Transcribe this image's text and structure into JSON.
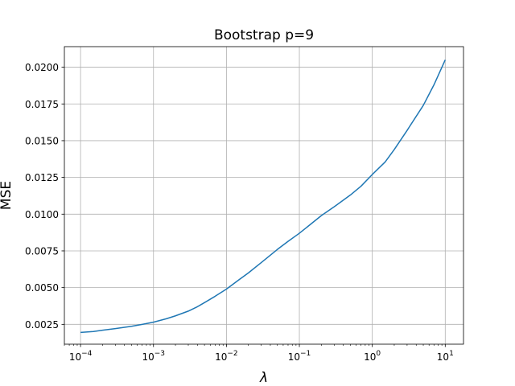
{
  "chart_data": {
    "type": "line",
    "title": "Bootstrap p=9",
    "xlabel": "λ",
    "ylabel": "MSE",
    "xscale": "log",
    "xlim": [
      6e-05,
      17.8
    ],
    "ylim": [
      0.00115,
      0.0214
    ],
    "grid": true,
    "x_ticks": [
      {
        "value": 0.0001,
        "base": "10",
        "exp": "−4"
      },
      {
        "value": 0.001,
        "base": "10",
        "exp": "−3"
      },
      {
        "value": 0.01,
        "base": "10",
        "exp": "−2"
      },
      {
        "value": 0.1,
        "base": "10",
        "exp": "−1"
      },
      {
        "value": 1,
        "base": "10",
        "exp": "0"
      },
      {
        "value": 10,
        "base": "10",
        "exp": "1"
      }
    ],
    "y_ticks": [
      "0.0025",
      "0.0050",
      "0.0075",
      "0.0100",
      "0.0125",
      "0.0150",
      "0.0175",
      "0.0200"
    ],
    "series": [
      {
        "color": "#1f77b4",
        "x": [
          0.0001,
          0.00015,
          0.0002,
          0.0003,
          0.0005,
          0.0007,
          0.001,
          0.0015,
          0.002,
          0.003,
          0.004,
          0.005,
          0.007,
          0.01,
          0.015,
          0.02,
          0.03,
          0.05,
          0.07,
          0.1,
          0.15,
          0.2,
          0.3,
          0.5,
          0.7,
          1,
          1.5,
          2,
          3,
          5,
          7,
          10
        ],
        "y": [
          0.00195,
          0.00201,
          0.0021,
          0.00221,
          0.00237,
          0.0025,
          0.00265,
          0.00288,
          0.00308,
          0.0034,
          0.0037,
          0.00398,
          0.00441,
          0.0049,
          0.00555,
          0.006,
          0.0067,
          0.0076,
          0.00815,
          0.0087,
          0.0094,
          0.0099,
          0.0105,
          0.0113,
          0.0119,
          0.0127,
          0.01355,
          0.0144,
          0.0157,
          0.0174,
          0.0188,
          0.0205
        ]
      }
    ]
  }
}
